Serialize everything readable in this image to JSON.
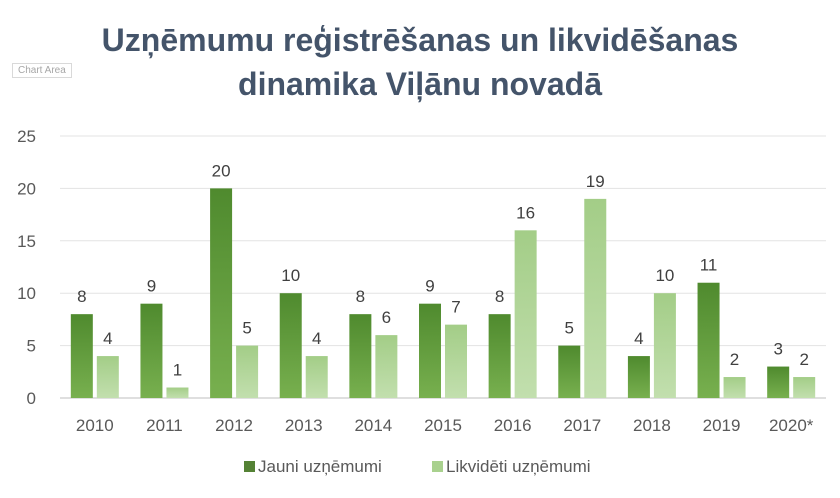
{
  "chart_area_label": "Chart Area",
  "chart_data": {
    "type": "bar",
    "title_lines": [
      "Uzņēmumu reģistrēšanas un likvidēšanas",
      "dinamika Viļānu novadā"
    ],
    "categories": [
      "2010",
      "2011",
      "2012",
      "2013",
      "2014",
      "2015",
      "2016",
      "2017",
      "2018",
      "2019",
      "2020*"
    ],
    "series": [
      {
        "name": "Jauni uzņēmumi",
        "values": [
          8,
          9,
          20,
          10,
          8,
          9,
          8,
          5,
          4,
          11,
          3
        ],
        "color": "#548235"
      },
      {
        "name": "Likvidēti uzņēmumi",
        "values": [
          4,
          1,
          5,
          4,
          6,
          7,
          16,
          19,
          10,
          2,
          2
        ],
        "color": "#a9d18e"
      }
    ],
    "ylim": [
      0,
      25
    ],
    "yticks": [
      0,
      5,
      10,
      15,
      20,
      25
    ],
    "grid": true,
    "data_labels": true,
    "legend_position": "bottom"
  }
}
